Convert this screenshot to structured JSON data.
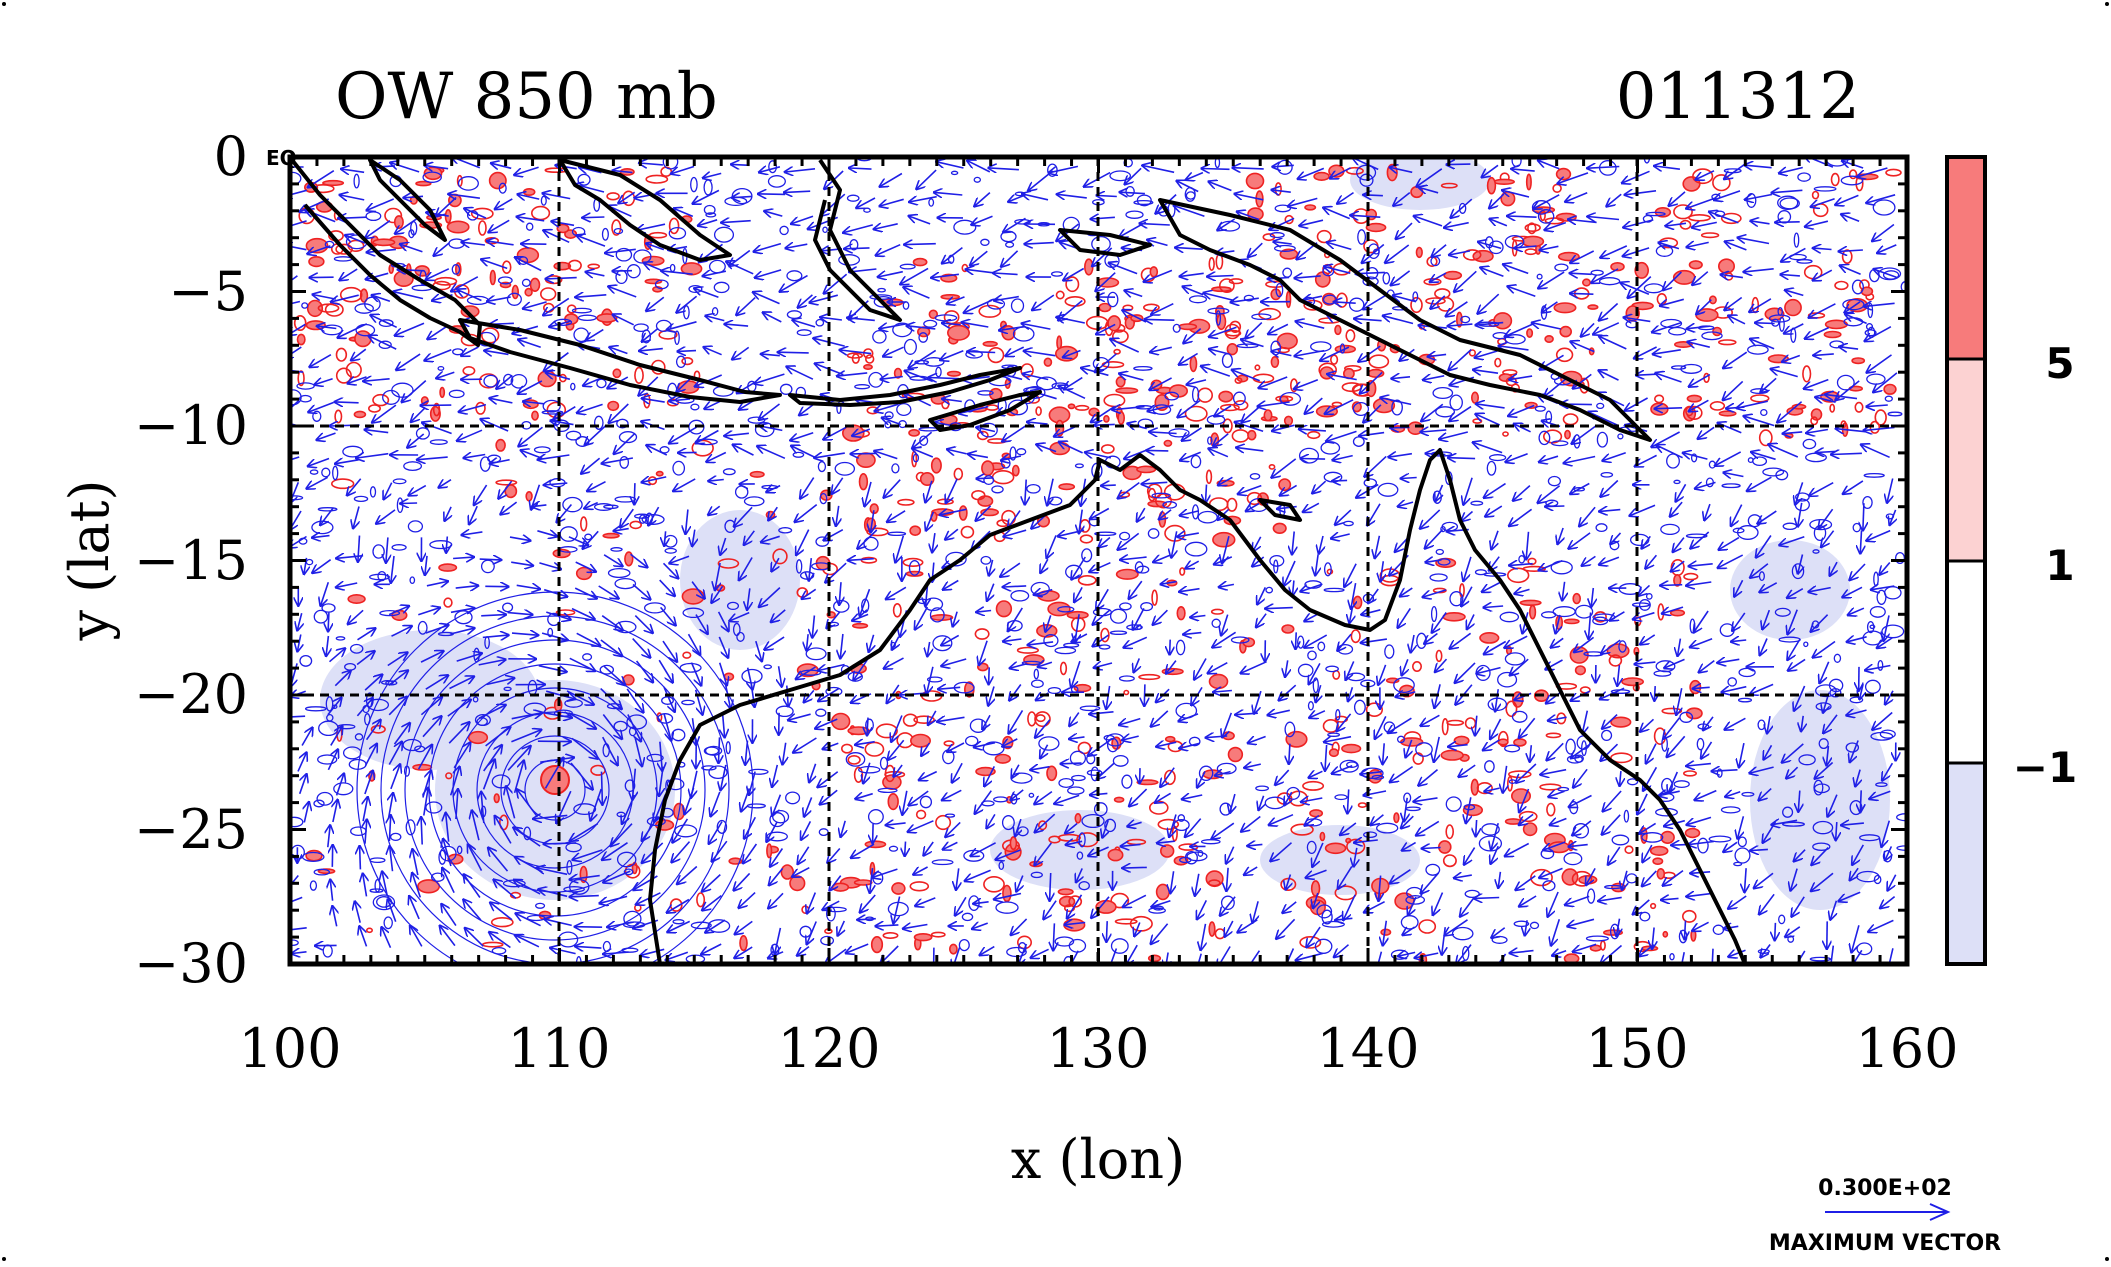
{
  "title_left": "OW 850 mb",
  "title_right": "011312",
  "axis": {
    "xlabel": "x (lon)",
    "ylabel": "y (lat)",
    "x_ticks": [
      "100",
      "110",
      "120",
      "130",
      "140",
      "150",
      "160"
    ],
    "y_ticks": [
      "0",
      "−5",
      "−10",
      "−15",
      "−20",
      "−25",
      "−30"
    ],
    "x_range": [
      100,
      160
    ],
    "y_range": [
      -30,
      0
    ],
    "corner_tag": "EQ"
  },
  "colorbar": {
    "labels": [
      "5",
      "1",
      "−1"
    ],
    "colors": {
      "strong_pos": "#f77b7b",
      "pos": "#fcd2d2",
      "neutral": "#ffffff",
      "neg": "#dde0f7"
    }
  },
  "legend": {
    "value": "0.300E+02",
    "label": "MAXIMUM VECTOR"
  },
  "colors": {
    "vector": "#1f1fe6",
    "pos_contour": "#ee2222",
    "coast": "#000000",
    "grid": "#000000"
  },
  "chart_data": {
    "type": "map",
    "title": "OW 850 mb",
    "subtitle": "011312",
    "xlabel": "x (lon)",
    "ylabel": "y (lat)",
    "xlim": [
      100,
      160
    ],
    "ylim": [
      -30,
      0
    ],
    "grid": true,
    "colorbar_levels": [
      -1,
      1,
      5
    ],
    "features": [
      "cyclonic circulation near 110E 23S",
      "Indonesian archipelago",
      "New Guinea",
      "northern Australia coastline"
    ],
    "max_vector": "0.300E+02"
  }
}
